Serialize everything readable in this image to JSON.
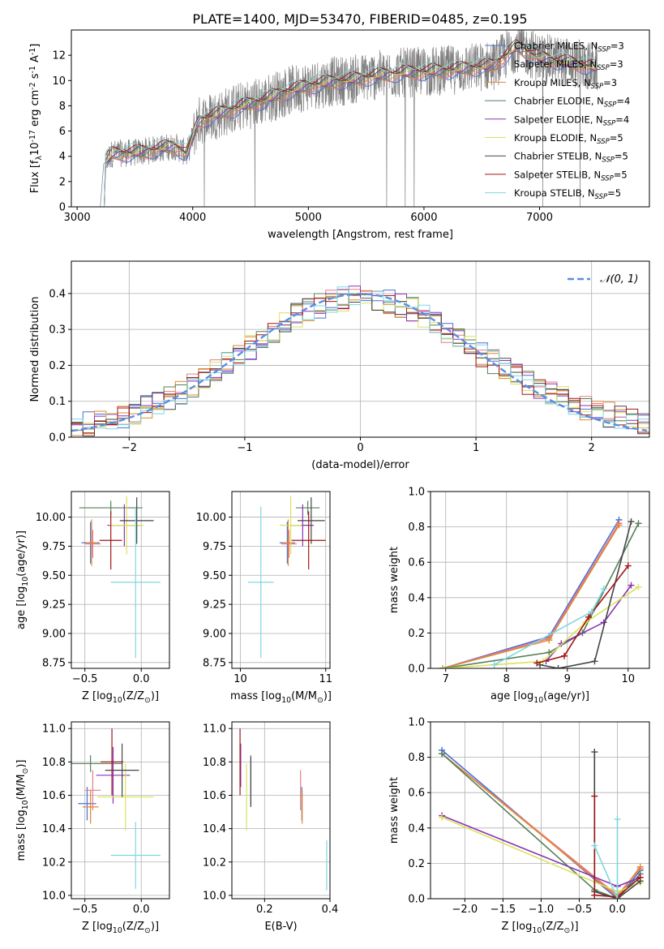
{
  "figure": {
    "title": "PLATE=1400, MJD=53470, FIBERID=0485, z=0.195"
  },
  "models": [
    {
      "name": "Chabrier MILES",
      "nssp": "3",
      "color": "#4b6fd6"
    },
    {
      "name": "Salpeter MILES",
      "nssp": "3",
      "color": "#e77a8a"
    },
    {
      "name": "Kroupa MILES",
      "nssp": "3",
      "color": "#e0872f"
    },
    {
      "name": "Chabrier ELODIE",
      "nssp": "4",
      "color": "#55805a"
    },
    {
      "name": "Salpeter ELODIE",
      "nssp": "4",
      "color": "#8b32b5"
    },
    {
      "name": "Kroupa ELODIE",
      "nssp": "5",
      "color": "#d9e35a"
    },
    {
      "name": "Chabrier STELIB",
      "nssp": "5",
      "color": "#454545"
    },
    {
      "name": "Salpeter STELIB",
      "nssp": "5",
      "color": "#a11515"
    },
    {
      "name": "Kroupa STELIB",
      "nssp": "5",
      "color": "#7fd7dd"
    }
  ],
  "chart_data": [
    {
      "id": "spectrum",
      "type": "line",
      "xlabel": "wavelength [Angstrom, rest frame]",
      "ylabel": "Flux [f$_\\lambda$10$^{-17}$ erg cm$^{-2}$ s$^{-1}$ A$^{-1}$]",
      "xlim": [
        2950,
        7950
      ],
      "ylim": [
        0,
        14
      ],
      "xticks": [
        3000,
        4000,
        5000,
        6000,
        7000
      ],
      "yticks": [
        0,
        2,
        4,
        6,
        8,
        10,
        12
      ],
      "legend_position": "top-right",
      "data_series": "observed",
      "data_color": "#7f7f7f",
      "continuum": {
        "x": [
          3200,
          3230,
          3300,
          3500,
          3600,
          3700,
          3850,
          3950,
          4050,
          4200,
          4400,
          4600,
          4800,
          5000,
          5200,
          5400,
          5600,
          5800,
          6000,
          6200,
          6400,
          6600,
          6800,
          7000,
          7200,
          7400,
          7500
        ],
        "y": [
          0,
          3.4,
          4.2,
          4.3,
          4.4,
          4.6,
          4.8,
          4.2,
          6.8,
          7.3,
          7.9,
          8.4,
          9.1,
          9.6,
          9.9,
          10.1,
          10.4,
          10.6,
          10.7,
          10.8,
          11.0,
          11.2,
          12.7,
          11.8,
          11.5,
          11.2,
          11.0
        ]
      }
    },
    {
      "id": "residual_hist",
      "type": "histogram",
      "xlabel": "(data-model)/error",
      "ylabel": "Normed distribution",
      "xlim": [
        -2.5,
        2.5
      ],
      "ylim": [
        0,
        0.49
      ],
      "xticks": [
        -2,
        -1,
        0,
        1,
        2
      ],
      "yticks": [
        0.0,
        0.1,
        0.2,
        0.3,
        0.4
      ],
      "grid": true,
      "reference": {
        "label": "𝒩(0, 1)",
        "mean": 0,
        "sigma": 1,
        "color": "#5b8ee0"
      },
      "bin_width": 0.1,
      "envelope": {
        "x": [
          -2.5,
          -2.0,
          -1.5,
          -1.0,
          -0.5,
          0.0,
          0.5,
          1.0,
          1.5,
          2.0,
          2.5
        ],
        "y": [
          0.025,
          0.06,
          0.13,
          0.24,
          0.35,
          0.4,
          0.35,
          0.24,
          0.14,
          0.075,
          0.035
        ]
      }
    },
    {
      "id": "age_vs_Z",
      "type": "scatter",
      "xlabel": "Z [log$_{10}$(Z/Z$_\\odot$)]",
      "ylabel": "age  [log$_{10}$(age/yr)]",
      "xlim": [
        -0.62,
        0.25
      ],
      "ylim": [
        8.7,
        10.22
      ],
      "xticks": [
        -0.5,
        0.0
      ],
      "yticks": [
        8.75,
        9.0,
        9.25,
        9.5,
        9.75,
        10.0
      ],
      "grid": true,
      "points": [
        {
          "x": -0.45,
          "y": 9.78,
          "xerr": 0.08,
          "yerr": 0.18
        },
        {
          "x": -0.43,
          "y": 9.77,
          "xerr": 0.07,
          "yerr": 0.12
        },
        {
          "x": -0.44,
          "y": 9.78,
          "xerr": 0.05,
          "yerr": 0.2
        },
        {
          "x": -0.27,
          "y": 10.08,
          "xerr": 0.28,
          "yerr": 0.06
        },
        {
          "x": -0.15,
          "y": 9.93,
          "xerr": 0.15,
          "yerr": 0.18
        },
        {
          "x": -0.13,
          "y": 9.93,
          "xerr": 0.15,
          "yerr": 0.25
        },
        {
          "x": -0.04,
          "y": 9.97,
          "xerr": 0.15,
          "yerr": 0.2
        },
        {
          "x": -0.27,
          "y": 9.8,
          "xerr": 0.1,
          "yerr": 0.25
        },
        {
          "x": -0.05,
          "y": 9.44,
          "xerr": 0.22,
          "yerr": 0.65
        }
      ]
    },
    {
      "id": "age_vs_mass",
      "type": "scatter",
      "xlabel": "mass [log$_{10}$(M/M$_\\odot$)]",
      "ylabel": "",
      "xlim": [
        9.9,
        11.05
      ],
      "ylim": [
        8.7,
        10.22
      ],
      "xticks": [
        10,
        11
      ],
      "yticks": [
        8.75,
        9.0,
        9.25,
        9.5,
        9.75,
        10.0
      ],
      "grid": true,
      "points": [
        {
          "x": 10.55,
          "y": 9.78,
          "xerr": 0.09,
          "yerr": 0.18
        },
        {
          "x": 10.57,
          "y": 9.77,
          "xerr": 0.09,
          "yerr": 0.12
        },
        {
          "x": 10.56,
          "y": 9.78,
          "xerr": 0.06,
          "yerr": 0.2
        },
        {
          "x": 10.79,
          "y": 10.08,
          "xerr": 0.14,
          "yerr": 0.06
        },
        {
          "x": 10.73,
          "y": 9.93,
          "xerr": 0.13,
          "yerr": 0.18
        },
        {
          "x": 10.59,
          "y": 9.93,
          "xerr": 0.13,
          "yerr": 0.25
        },
        {
          "x": 10.83,
          "y": 9.97,
          "xerr": 0.16,
          "yerr": 0.2
        },
        {
          "x": 10.8,
          "y": 9.8,
          "xerr": 0.2,
          "yerr": 0.25
        },
        {
          "x": 10.24,
          "y": 9.44,
          "xerr": 0.15,
          "yerr": 0.65
        }
      ]
    },
    {
      "id": "weight_vs_age",
      "type": "line",
      "xlabel": "age  [log$_{10}$(age/yr)]",
      "ylabel": "mass weight",
      "xlim": [
        6.75,
        10.35
      ],
      "ylim": [
        0,
        1.0
      ],
      "xticks": [
        7,
        8,
        9,
        10
      ],
      "yticks": [
        0.0,
        0.2,
        0.4,
        0.6,
        0.8,
        1.0
      ],
      "grid": true,
      "series": [
        {
          "x": [
            6.95,
            8.7,
            9.85
          ],
          "y": [
            0.0,
            0.18,
            0.84
          ]
        },
        {
          "x": [
            6.95,
            8.7,
            9.85
          ],
          "y": [
            0.0,
            0.17,
            0.82
          ]
        },
        {
          "x": [
            6.95,
            8.7,
            9.85
          ],
          "y": [
            0.0,
            0.16,
            0.81
          ]
        },
        {
          "x": [
            6.95,
            8.7,
            9.25,
            10.17
          ],
          "y": [
            0.0,
            0.09,
            0.2,
            0.82
          ]
        },
        {
          "x": [
            8.65,
            8.9,
            9.6,
            10.05
          ],
          "y": [
            0.04,
            0.14,
            0.26,
            0.47
          ]
        },
        {
          "x": [
            6.95,
            8.6,
            9.3,
            10.17
          ],
          "y": [
            0.0,
            0.04,
            0.26,
            0.46
          ]
        },
        {
          "x": [
            8.55,
            8.85,
            9.45,
            10.05
          ],
          "y": [
            0.02,
            0.0,
            0.04,
            0.83
          ]
        },
        {
          "x": [
            8.5,
            8.95,
            9.35,
            10.0
          ],
          "y": [
            0.03,
            0.07,
            0.29,
            0.58
          ]
        },
        {
          "x": [
            7.8,
            9.4,
            9.6
          ],
          "y": [
            0.02,
            0.32,
            0.45
          ]
        }
      ]
    },
    {
      "id": "mass_vs_Z",
      "type": "scatter",
      "xlabel": "Z [log$_{10}$(Z/Z$_\\odot$)]",
      "ylabel": "mass [log$_{10}$(M/M$_\\odot$)]",
      "xlim": [
        -0.62,
        0.25
      ],
      "ylim": [
        9.98,
        11.04
      ],
      "xticks": [
        -0.5,
        0.0
      ],
      "yticks": [
        10.0,
        10.2,
        10.4,
        10.6,
        10.8,
        11.0
      ],
      "grid": true,
      "points": [
        {
          "x": -0.48,
          "y": 10.55,
          "xerr": 0.08,
          "yerr": 0.1
        },
        {
          "x": -0.43,
          "y": 10.63,
          "xerr": 0.07,
          "yerr": 0.12
        },
        {
          "x": -0.45,
          "y": 10.53,
          "xerr": 0.07,
          "yerr": 0.1
        },
        {
          "x": -0.45,
          "y": 10.79,
          "xerr": 0.28,
          "yerr": 0.05
        },
        {
          "x": -0.25,
          "y": 10.72,
          "xerr": 0.15,
          "yerr": 0.17
        },
        {
          "x": -0.14,
          "y": 10.59,
          "xerr": 0.25,
          "yerr": 0.2
        },
        {
          "x": -0.17,
          "y": 10.75,
          "xerr": 0.15,
          "yerr": 0.16
        },
        {
          "x": -0.26,
          "y": 10.8,
          "xerr": 0.1,
          "yerr": 0.2
        },
        {
          "x": -0.05,
          "y": 10.24,
          "xerr": 0.22,
          "yerr": 0.2
        }
      ]
    },
    {
      "id": "mass_vs_ebv",
      "type": "scatter",
      "xlabel": "E(B-V)",
      "ylabel": "",
      "xlim": [
        0.1,
        0.4
      ],
      "ylim": [
        9.98,
        11.04
      ],
      "xticks": [
        0.2,
        0.4
      ],
      "yticks": [
        10.0,
        10.2,
        10.4,
        10.6,
        10.8,
        11.0
      ],
      "grid": true,
      "points": [
        {
          "x": 0.314,
          "y": 10.55,
          "xerr": 0,
          "yerr": 0.1
        },
        {
          "x": 0.31,
          "y": 10.63,
          "xerr": 0,
          "yerr": 0.12
        },
        {
          "x": 0.315,
          "y": 10.53,
          "xerr": 0,
          "yerr": 0.1
        },
        {
          "x": 0.158,
          "y": 10.69,
          "xerr": 0,
          "yerr": 0.15
        },
        {
          "x": 0.127,
          "y": 10.78,
          "xerr": 0,
          "yerr": 0.13
        },
        {
          "x": 0.145,
          "y": 10.59,
          "xerr": 0,
          "yerr": 0.2
        },
        {
          "x": 0.158,
          "y": 10.68,
          "xerr": 0,
          "yerr": 0.15
        },
        {
          "x": 0.125,
          "y": 10.8,
          "xerr": 0,
          "yerr": 0.2
        },
        {
          "x": 0.39,
          "y": 10.18,
          "xerr": 0,
          "yerr": 0.15
        }
      ]
    },
    {
      "id": "weight_vs_Z",
      "type": "line",
      "xlabel": "Z [log$_{10}$(Z/Z$_\\odot$)]",
      "ylabel": "mass weight",
      "xlim": [
        -2.45,
        0.42
      ],
      "ylim": [
        0,
        1.0
      ],
      "xticks": [
        -2.0,
        -1.5,
        -1.0,
        -0.5,
        0.0
      ],
      "yticks": [
        0.0,
        0.2,
        0.4,
        0.6,
        0.8,
        1.0
      ],
      "grid": true,
      "series": [
        {
          "x": [
            -2.3,
            0.0,
            0.3
          ],
          "y": [
            0.84,
            0.0,
            0.16
          ]
        },
        {
          "x": [
            -2.3,
            0.0,
            0.3
          ],
          "y": [
            0.82,
            0.02,
            0.17
          ]
        },
        {
          "x": [
            -2.3,
            0.0,
            0.3
          ],
          "y": [
            0.82,
            0.01,
            0.18
          ]
        },
        {
          "x": [
            -2.3,
            -0.3,
            0.0,
            0.3
          ],
          "y": [
            0.82,
            0.05,
            0.0,
            0.14
          ]
        },
        {
          "x": [
            -2.3,
            0.0,
            0.3
          ],
          "y": [
            0.47,
            0.07,
            0.12
          ]
        },
        {
          "x": [
            -2.3,
            0.0,
            0.3
          ],
          "y": [
            0.46,
            0.04,
            0.09
          ]
        },
        {
          "x": [
            -0.3,
            -0.3,
            0.0,
            0.3
          ],
          "y": [
            0.83,
            0.04,
            0.0,
            0.1
          ]
        },
        {
          "x": [
            -0.3,
            -0.3,
            0.0,
            0.3
          ],
          "y": [
            0.58,
            0.02,
            0.01,
            0.12
          ]
        },
        {
          "x": [
            -0.3,
            0.0,
            0.0
          ],
          "y": [
            0.3,
            0.0,
            0.45
          ]
        }
      ]
    }
  ]
}
